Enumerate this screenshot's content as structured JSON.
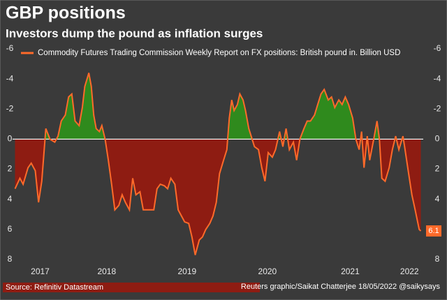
{
  "chart_data": {
    "type": "area",
    "title": "GBP positions",
    "subtitle": "Investors dump the pound as inflation surges",
    "source": "Source: Refinitiv Datastream",
    "credit": "Reuters graphic/Saikat Chatterjee 18/05/2022 @saikysays",
    "y_inverted": true,
    "ylim": [
      -6,
      8
    ],
    "yticks": [
      -6,
      -4,
      -2,
      0,
      2,
      4,
      6,
      8
    ],
    "xlim": [
      2017.34,
      2022.4
    ],
    "xticks": [
      {
        "value": 2017.68,
        "label": "2017"
      },
      {
        "value": 2018.5,
        "label": "2018"
      },
      {
        "value": 2019.49,
        "label": "2019"
      },
      {
        "value": 2020.48,
        "label": "2020"
      },
      {
        "value": 2021.5,
        "label": "2021"
      },
      {
        "value": 2022.23,
        "label": "2022"
      }
    ],
    "negative_color": "#2f8a1d",
    "positive_color": "#8e1c12",
    "series": [
      {
        "name": "Commodity Futures Trading Commission Weekly Report on FX positions: British pound in. Billion USD",
        "color": "#ff6a2a",
        "x": [
          2017.37,
          2017.43,
          2017.47,
          2017.53,
          2017.57,
          2017.62,
          2017.66,
          2017.7,
          2017.73,
          2017.75,
          2017.8,
          2017.86,
          2017.9,
          2017.94,
          2017.99,
          2018.03,
          2018.07,
          2018.11,
          2018.16,
          2018.2,
          2018.23,
          2018.28,
          2018.31,
          2018.34,
          2018.37,
          2018.41,
          2018.44,
          2018.48,
          2018.52,
          2018.56,
          2018.6,
          2018.65,
          2018.69,
          2018.73,
          2018.78,
          2018.82,
          2018.86,
          2018.91,
          2018.95,
          2018.99,
          2019.03,
          2019.08,
          2019.12,
          2019.16,
          2019.21,
          2019.25,
          2019.29,
          2019.34,
          2019.38,
          2019.42,
          2019.46,
          2019.51,
          2019.55,
          2019.59,
          2019.64,
          2019.68,
          2019.72,
          2019.77,
          2019.81,
          2019.85,
          2019.89,
          2019.94,
          2019.98,
          2020.01,
          2020.04,
          2020.07,
          2020.11,
          2020.14,
          2020.18,
          2020.21,
          2020.25,
          2020.28,
          2020.32,
          2020.37,
          2020.41,
          2020.45,
          2020.49,
          2020.54,
          2020.58,
          2020.63,
          2020.67,
          2020.71,
          2020.75,
          2020.8,
          2020.84,
          2020.88,
          2020.93,
          2020.97,
          2021.01,
          2021.06,
          2021.1,
          2021.14,
          2021.18,
          2021.23,
          2021.27,
          2021.31,
          2021.36,
          2021.4,
          2021.44,
          2021.48,
          2021.53,
          2021.57,
          2021.61,
          2021.64,
          2021.67,
          2021.71,
          2021.74,
          2021.79,
          2021.83,
          2021.86,
          2021.89,
          2021.93,
          2021.98,
          2022.02,
          2022.06,
          2022.1,
          2022.15,
          2022.17,
          2022.22,
          2022.26,
          2022.3,
          2022.35,
          2022.37
        ],
        "values": [
          3.3,
          2.6,
          3.0,
          1.9,
          1.6,
          2.1,
          4.2,
          2.8,
          0.7,
          -0.7,
          0,
          0.2,
          -0.2,
          -1.2,
          -1.6,
          -2.8,
          -3.0,
          -1.2,
          -0.9,
          -2.1,
          -3.5,
          -4.4,
          -3.5,
          -1.6,
          -0.7,
          -0.5,
          -0.9,
          0,
          1.4,
          3.0,
          4.7,
          4.4,
          3.7,
          4.2,
          4.7,
          2.6,
          3.7,
          3.5,
          4.7,
          4.7,
          4.7,
          4.7,
          3.3,
          3.0,
          3.1,
          3.3,
          2.6,
          3.0,
          4.7,
          5.1,
          5.5,
          5.6,
          6.5,
          7.7,
          6.7,
          6.5,
          6.0,
          5.6,
          5.1,
          4.2,
          2.3,
          1.4,
          0.7,
          -1.4,
          -2.6,
          -1.9,
          -2.3,
          -3.0,
          -2.6,
          -1.9,
          -0.7,
          -0.2,
          0.5,
          0.7,
          1.9,
          2.8,
          0.9,
          1.2,
          0.7,
          -0.5,
          0.5,
          -0.7,
          0.7,
          0.2,
          1.4,
          0,
          -0.7,
          -1.2,
          -1.2,
          -1.6,
          -2.3,
          -3.0,
          -3.3,
          -2.6,
          -2.8,
          -2.1,
          -2.6,
          -2.3,
          -2.8,
          -2.3,
          -1.4,
          0,
          0.7,
          -0.5,
          1.9,
          -0.2,
          1.4,
          0,
          -1.2,
          0,
          2.6,
          2.8,
          1.9,
          0.7,
          -0.2,
          0.7,
          -0.2,
          0.5,
          2.3,
          3.7,
          4.7,
          6.0,
          6.1
        ]
      }
    ]
  }
}
